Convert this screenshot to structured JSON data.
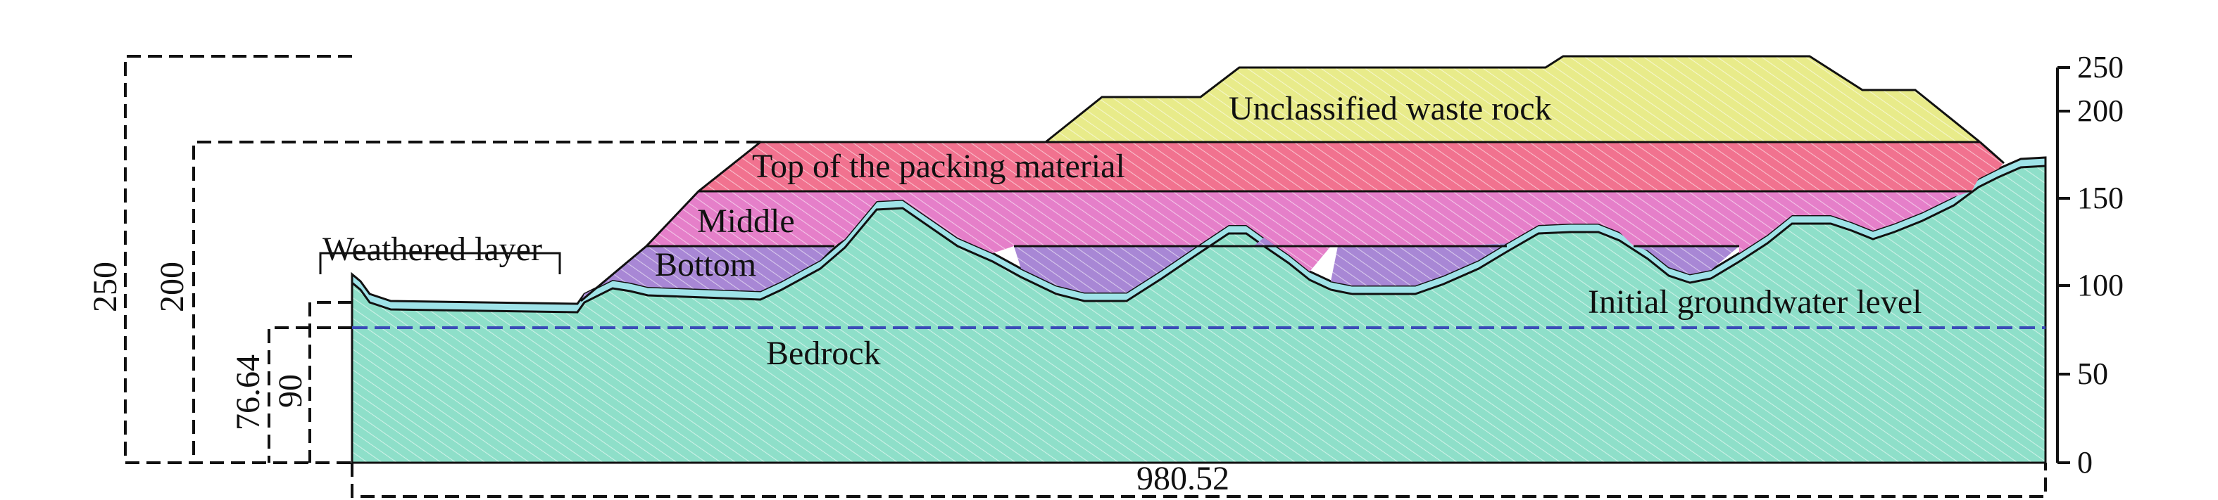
{
  "colors": {
    "waste_rock": "#e8eb8a",
    "packing_top": "#f1728f",
    "packing_middle": "#e57fc9",
    "packing_bottom": "#a887d5",
    "bedrock": "#8edfc9",
    "weathered": "#9fe3e8",
    "groundwater": "#3a4bb8",
    "line": "#111111"
  },
  "labels": {
    "waste_rock": "Unclassified waste rock",
    "packing_top": "Top of the packing material",
    "packing_middle": "Middle",
    "packing_bottom": "Bottom",
    "weathered": "Weathered layer",
    "groundwater": "Initial groundwater level",
    "bedrock": "Bedrock"
  },
  "axis": {
    "ticks": [
      "250",
      "200",
      "150",
      "100",
      "50",
      "0"
    ]
  },
  "dimensions": {
    "height_250": "250",
    "height_200": "200",
    "height_90": "90",
    "height_groundwater": "76.64",
    "width": "980.52"
  }
}
